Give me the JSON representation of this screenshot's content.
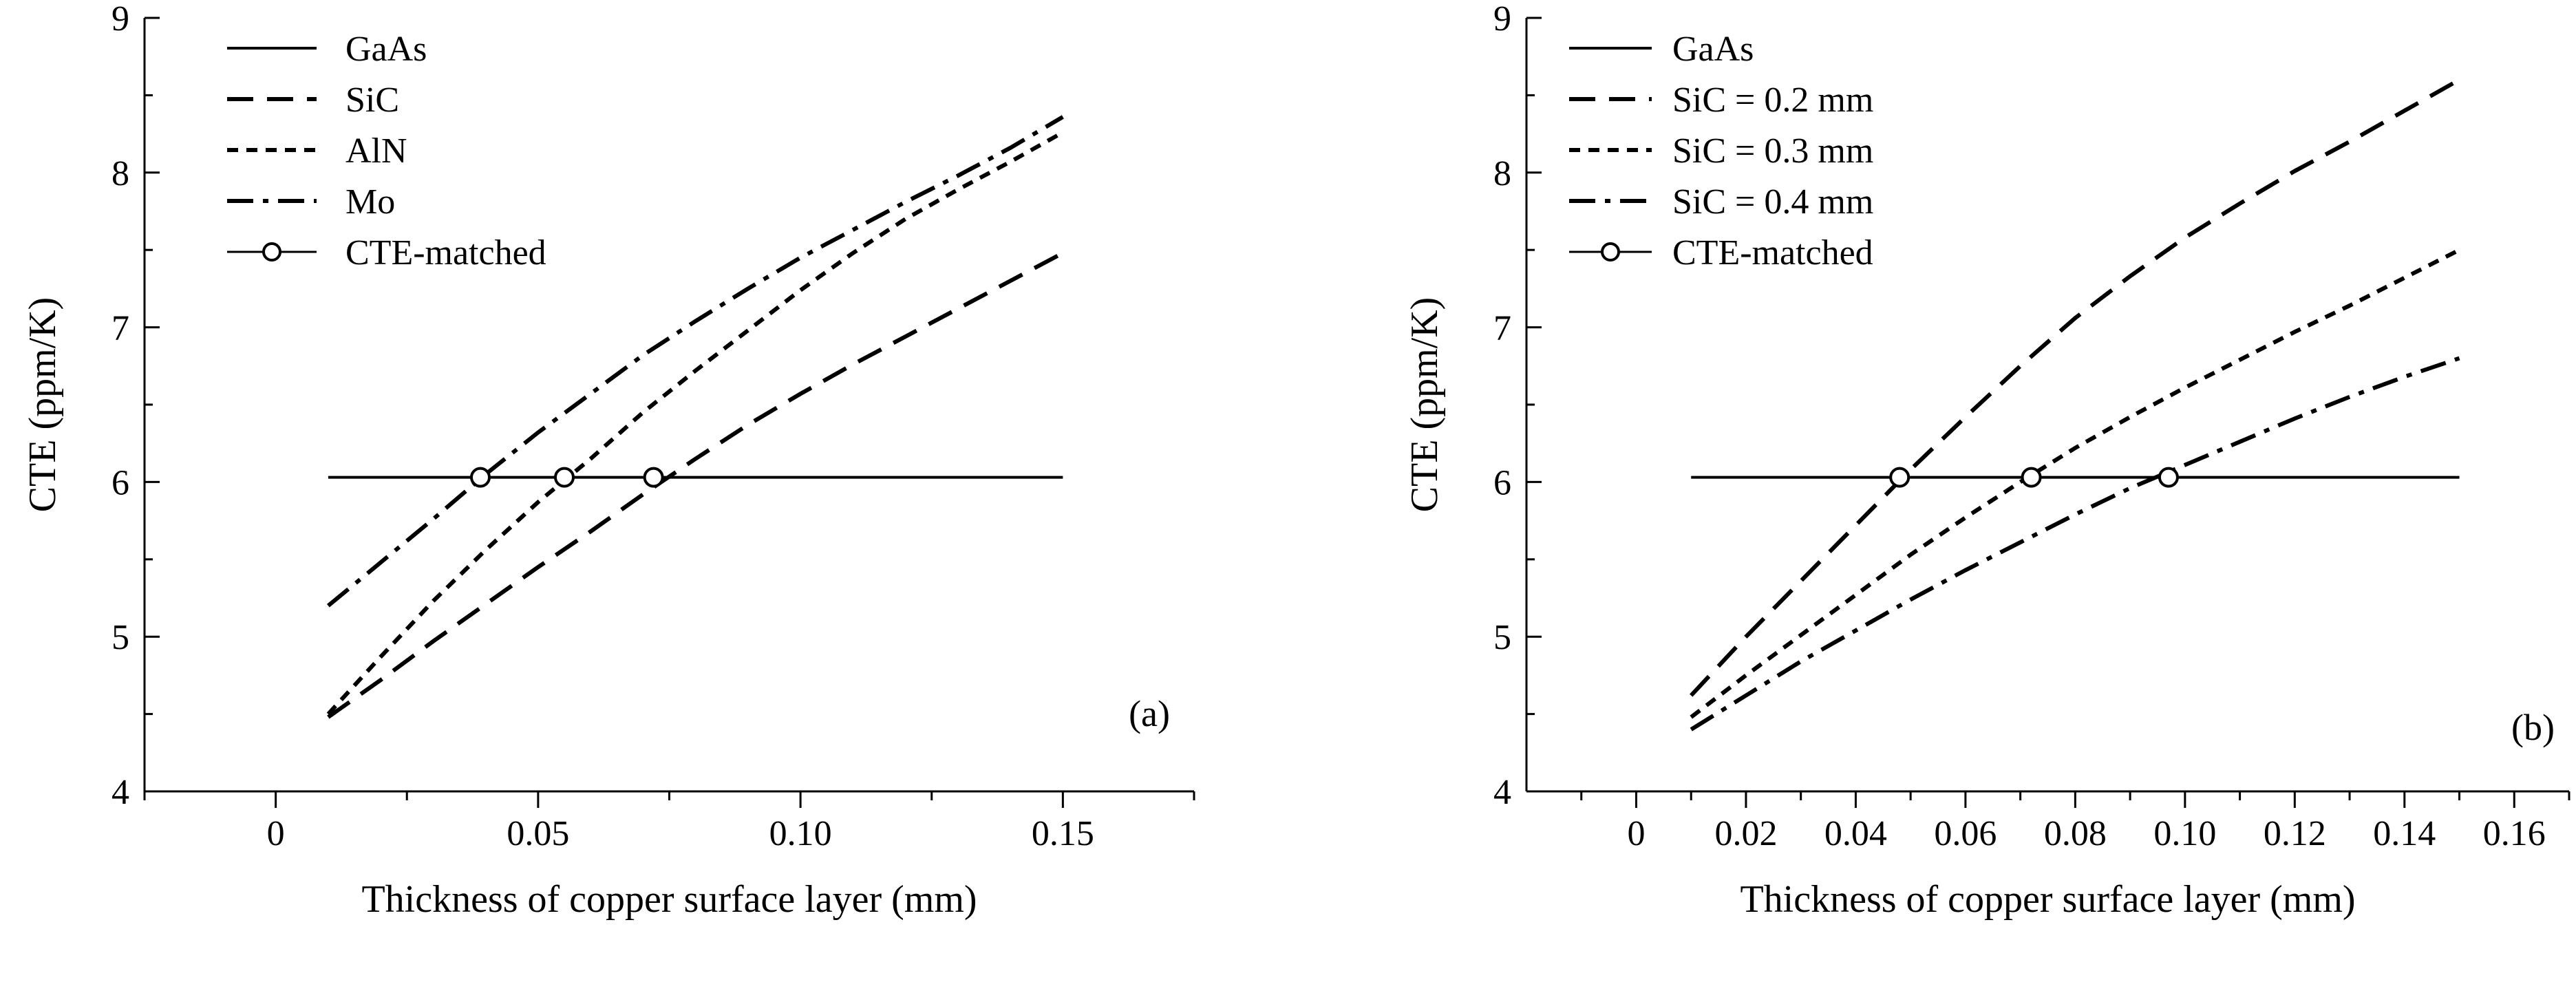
{
  "figure": {
    "background": "#ffffff",
    "ink": "#000000"
  },
  "chart_data": [
    {
      "type": "line",
      "panel_label": "(a)",
      "xlabel": "Thickness of copper surface layer (mm)",
      "ylabel": "CTE (ppm/K)",
      "xlim": [
        -0.025,
        0.175
      ],
      "ylim": [
        4,
        9
      ],
      "xticks": [
        0,
        0.05,
        0.1,
        0.15
      ],
      "xtick_labels": [
        "0",
        "0.05",
        "0.10",
        "0.15"
      ],
      "yticks": [
        4,
        5,
        6,
        7,
        8,
        9
      ],
      "ytick_labels": [
        "4",
        "5",
        "6",
        "7",
        "8",
        "9"
      ],
      "grid": false,
      "legend_position": "top-left",
      "series": [
        {
          "name": "GaAs",
          "style": "solid",
          "x": [
            0.01,
            0.15
          ],
          "y": [
            6.03,
            6.03
          ]
        },
        {
          "name": "SiC",
          "style": "dash",
          "x": [
            0.01,
            0.02,
            0.03,
            0.04,
            0.05,
            0.06,
            0.07,
            0.08,
            0.09,
            0.1,
            0.11,
            0.12,
            0.13,
            0.14,
            0.15
          ],
          "y": [
            4.48,
            4.72,
            4.97,
            5.21,
            5.45,
            5.68,
            5.92,
            6.15,
            6.37,
            6.57,
            6.76,
            6.94,
            7.12,
            7.3,
            7.48
          ]
        },
        {
          "name": "AlN",
          "style": "dot",
          "x": [
            0.01,
            0.02,
            0.03,
            0.04,
            0.05,
            0.06,
            0.07,
            0.08,
            0.09,
            0.1,
            0.11,
            0.12,
            0.13,
            0.14,
            0.15
          ],
          "y": [
            4.5,
            4.87,
            5.23,
            5.56,
            5.87,
            6.15,
            6.45,
            6.72,
            6.98,
            7.24,
            7.48,
            7.7,
            7.89,
            8.07,
            8.26
          ]
        },
        {
          "name": "Mo",
          "style": "dashdot",
          "x": [
            0.01,
            0.02,
            0.03,
            0.04,
            0.05,
            0.06,
            0.07,
            0.08,
            0.09,
            0.1,
            0.11,
            0.12,
            0.13,
            0.14,
            0.15
          ],
          "y": [
            5.2,
            5.48,
            5.76,
            6.05,
            6.32,
            6.57,
            6.82,
            7.04,
            7.25,
            7.45,
            7.63,
            7.81,
            7.98,
            8.16,
            8.36
          ]
        }
      ],
      "matched_points": {
        "name": "CTE-matched",
        "x": [
          0.039,
          0.055,
          0.072
        ],
        "y": [
          6.03,
          6.03,
          6.03
        ]
      }
    },
    {
      "type": "line",
      "panel_label": "(b)",
      "xlabel": "Thickness of copper surface layer (mm)",
      "ylabel": "CTE (ppm/K)",
      "xlim": [
        -0.02,
        0.17
      ],
      "ylim": [
        4,
        9
      ],
      "xticks": [
        0,
        0.02,
        0.04,
        0.06,
        0.08,
        0.1,
        0.12,
        0.14,
        0.16
      ],
      "xtick_labels": [
        "0",
        "0.02",
        "0.04",
        "0.06",
        "0.08",
        "0.10",
        "0.12",
        "0.14",
        "0.16"
      ],
      "yticks": [
        4,
        5,
        6,
        7,
        8,
        9
      ],
      "ytick_labels": [
        "4",
        "5",
        "6",
        "7",
        "8",
        "9"
      ],
      "grid": false,
      "legend_position": "top-left",
      "series": [
        {
          "name": "GaAs",
          "style": "solid",
          "x": [
            0.01,
            0.15
          ],
          "y": [
            6.03,
            6.03
          ]
        },
        {
          "name": "SiC = 0.2 mm",
          "style": "dash",
          "x": [
            0.01,
            0.02,
            0.03,
            0.04,
            0.05,
            0.06,
            0.07,
            0.08,
            0.09,
            0.1,
            0.11,
            0.12,
            0.13,
            0.14,
            0.15
          ],
          "y": [
            4.62,
            5.0,
            5.36,
            5.72,
            6.08,
            6.42,
            6.75,
            7.06,
            7.33,
            7.58,
            7.8,
            8.01,
            8.2,
            8.4,
            8.6
          ]
        },
        {
          "name": "SiC = 0.3 mm",
          "style": "dot",
          "x": [
            0.01,
            0.02,
            0.03,
            0.04,
            0.05,
            0.06,
            0.07,
            0.08,
            0.09,
            0.1,
            0.11,
            0.12,
            0.13,
            0.14,
            0.15
          ],
          "y": [
            4.48,
            4.75,
            5.01,
            5.27,
            5.53,
            5.77,
            6.0,
            6.22,
            6.42,
            6.61,
            6.79,
            6.97,
            7.14,
            7.32,
            7.5
          ]
        },
        {
          "name": "SiC = 0.4 mm",
          "style": "dashdot",
          "x": [
            0.01,
            0.02,
            0.03,
            0.04,
            0.05,
            0.06,
            0.07,
            0.08,
            0.09,
            0.1,
            0.11,
            0.12,
            0.13,
            0.14,
            0.15
          ],
          "y": [
            4.4,
            4.62,
            4.84,
            5.04,
            5.24,
            5.43,
            5.61,
            5.79,
            5.96,
            6.11,
            6.26,
            6.41,
            6.55,
            6.68,
            6.8
          ]
        }
      ],
      "matched_points": {
        "name": "CTE-matched",
        "x": [
          0.048,
          0.072,
          0.097
        ],
        "y": [
          6.03,
          6.03,
          6.03
        ]
      }
    }
  ]
}
